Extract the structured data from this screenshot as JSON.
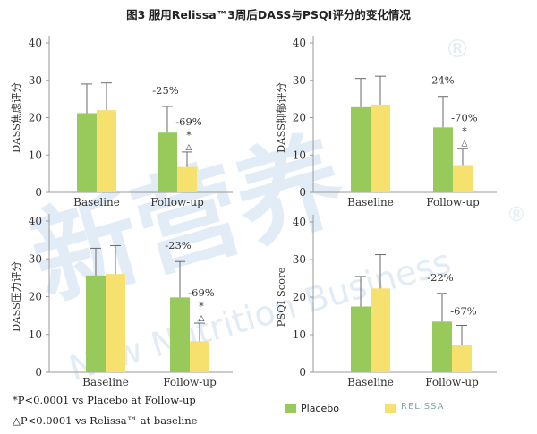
{
  "figure_title": "图3 服用Relissa™3周后DASS与PSQI评分的变化情况",
  "footnotes": [
    "*P<0.0001 vs Placebo at Follow-up",
    "△P<0.0001 vs Relissa™ at baseline"
  ],
  "legend": {
    "placebo_label": "Placebo",
    "relissa_label": "RELISSA"
  },
  "watermark": {
    "main": "新营养",
    "sub": "New Nutrition Business",
    "reg": "®"
  },
  "colors": {
    "placebo": "#97c95b",
    "relissa": "#f6e06e",
    "error": "#6a6a6a",
    "axis": "#9a9a9a",
    "text": "#333333"
  },
  "chart_data": [
    {
      "type": "bar",
      "ylabel": "DASS焦虑评分",
      "ylim": [
        0,
        40
      ],
      "yticks": [
        0,
        10,
        20,
        30,
        40
      ],
      "categories": [
        "Baseline",
        "Follow-up"
      ],
      "series": [
        {
          "name": "Placebo",
          "values": [
            21.2,
            16.0
          ],
          "errors": [
            7.8,
            7.0
          ]
        },
        {
          "name": "Relissa",
          "values": [
            22.0,
            6.8
          ],
          "errors": [
            7.3,
            4.0
          ]
        }
      ],
      "annotations": {
        "placebo_pct": "-25%",
        "relissa_pct": "-69%",
        "star": "*",
        "triangle": "△"
      }
    },
    {
      "type": "bar",
      "ylabel": "DASS抑郁评分",
      "ylim": [
        0,
        40
      ],
      "yticks": [
        0,
        10,
        20,
        30,
        40
      ],
      "categories": [
        "Baseline",
        "Follow-up"
      ],
      "series": [
        {
          "name": "Placebo",
          "values": [
            22.8,
            17.4
          ],
          "errors": [
            7.7,
            8.3
          ]
        },
        {
          "name": "Relissa",
          "values": [
            23.5,
            7.3
          ],
          "errors": [
            7.6,
            4.5
          ]
        }
      ],
      "annotations": {
        "placebo_pct": "-24%",
        "relissa_pct": "-70%",
        "star": "*",
        "triangle": "△"
      }
    },
    {
      "type": "bar",
      "ylabel": "DASS压力评分",
      "ylim": [
        0,
        40
      ],
      "yticks": [
        0,
        10,
        20,
        30,
        40
      ],
      "categories": [
        "Baseline",
        "Follow-up"
      ],
      "series": [
        {
          "name": "Placebo",
          "values": [
            25.6,
            19.8
          ],
          "errors": [
            7.2,
            9.5
          ]
        },
        {
          "name": "Relissa",
          "values": [
            26.0,
            8.2
          ],
          "errors": [
            7.5,
            4.8
          ]
        }
      ],
      "annotations": {
        "placebo_pct": "-23%",
        "relissa_pct": "-69%",
        "star": "*",
        "triangle": "△"
      }
    },
    {
      "type": "bar",
      "ylabel": "PSQI Score",
      "ylim": [
        0,
        40
      ],
      "yticks": [
        0,
        10,
        20,
        30,
        40
      ],
      "categories": [
        "Baseline",
        "Follow-up"
      ],
      "series": [
        {
          "name": "Placebo",
          "values": [
            17.5,
            13.5
          ],
          "errors": [
            8.0,
            7.5
          ]
        },
        {
          "name": "Relissa",
          "values": [
            22.3,
            7.3
          ],
          "errors": [
            9.0,
            5.2
          ]
        }
      ],
      "annotations": {
        "placebo_pct": "-22%",
        "relissa_pct": "-67%",
        "star": "",
        "triangle": ""
      }
    }
  ]
}
